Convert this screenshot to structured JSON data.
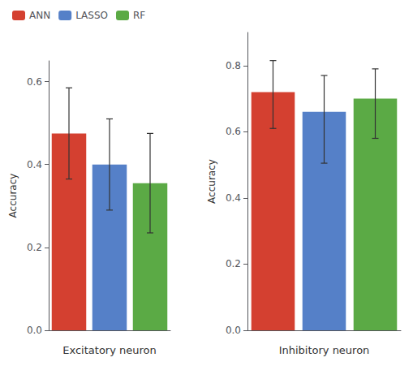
{
  "chart_data": [
    {
      "type": "bar",
      "xlabel": "Excitatory neuron",
      "ylabel": "Accuracy",
      "series": [
        {
          "name": "ANN",
          "color": "#D44030",
          "values": [
            0.475
          ],
          "err_up": [
            0.11
          ],
          "err_down": [
            0.11
          ]
        },
        {
          "name": "LASSO",
          "color": "#5580C8",
          "values": [
            0.4
          ],
          "err_up": [
            0.11
          ],
          "err_down": [
            0.11
          ]
        },
        {
          "name": "RF",
          "color": "#5BAA45",
          "values": [
            0.355
          ],
          "err_up": [
            0.12
          ],
          "err_down": [
            0.12
          ]
        }
      ],
      "ylim": [
        0.0,
        0.65
      ],
      "yticks": [
        {
          "value": 0.0,
          "label": "0.0"
        },
        0.2,
        0.4,
        0.6
      ],
      "grid": false,
      "legend": "upper left",
      "tick_labels": "y"
    },
    {
      "type": "bar",
      "xlabel": "Inhibitory neuron",
      "ylabel": "Accuracy",
      "series": [
        {
          "name": "ANN",
          "color": "#D44030",
          "values": [
            0.72
          ],
          "err_up": [
            0.095
          ],
          "err_down": [
            0.11
          ]
        },
        {
          "name": "LASSO",
          "color": "#5580C8",
          "values": [
            0.66
          ],
          "err_up": [
            0.11
          ],
          "err_down": [
            0.155
          ]
        },
        {
          "name": "RF",
          "color": "#5BAA45",
          "values": [
            0.7
          ],
          "err_up": [
            0.09
          ],
          "err_down": [
            0.12
          ]
        }
      ],
      "ylim": [
        0.0,
        0.9
      ],
      "yticks": [
        {
          "value": 0.0,
          "label": "0.0"
        },
        0.2,
        0.4,
        0.6,
        0.8
      ],
      "grid": false,
      "legend": "upper left",
      "tick_labels": "y"
    }
  ]
}
